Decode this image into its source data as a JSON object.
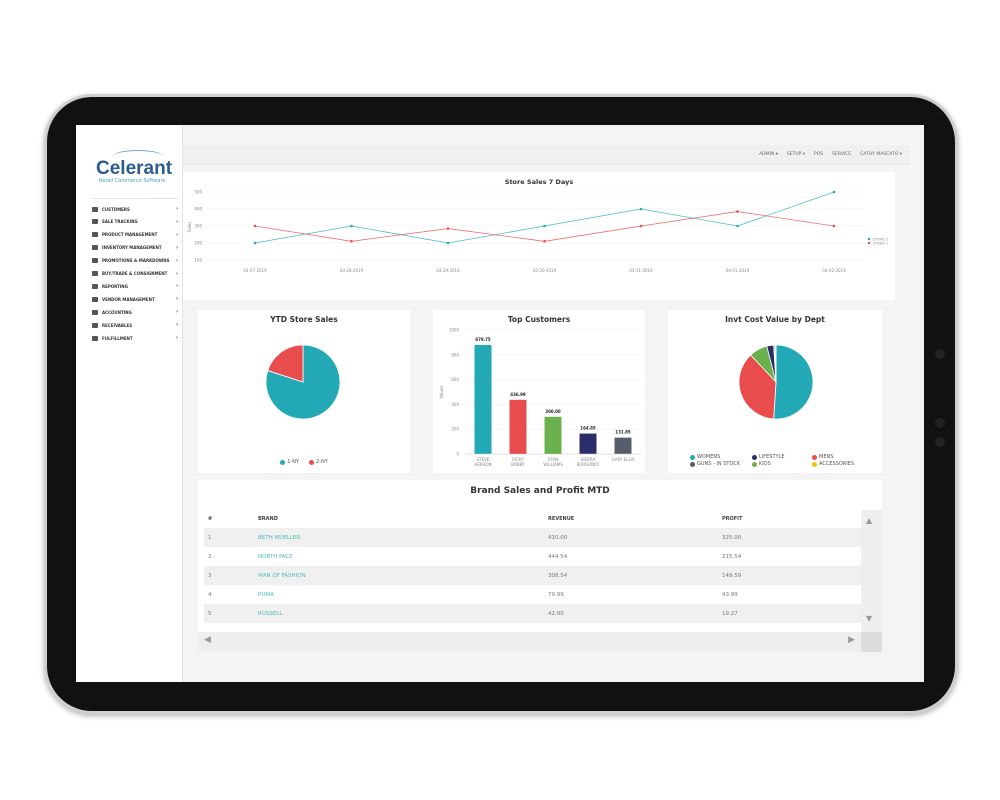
{
  "brand": {
    "name": "Celerant",
    "tagline": "Retail Commerce Software"
  },
  "sidebar": {
    "items": [
      {
        "label": "CUSTOMERS"
      },
      {
        "label": "SALE TRACKING"
      },
      {
        "label": "PRODUCT MANAGEMENT"
      },
      {
        "label": "INVENTORY MANAGEMENT"
      },
      {
        "label": "PROMOTIONS & MARKDOWNS"
      },
      {
        "label": "BUY/TRADE & CONSIGNMENT"
      },
      {
        "label": "REPORTING"
      },
      {
        "label": "VENDOR MANAGEMENT"
      },
      {
        "label": "ACCOUNTING"
      },
      {
        "label": "RECEIVABLES"
      },
      {
        "label": "FULFILLMENT"
      }
    ]
  },
  "topbar": {
    "admin": "ADMIN ▾",
    "setup": "SETUP ▾",
    "pos": "POS",
    "service": "SERVICE",
    "user": "CATHY MASCATO ▾"
  },
  "colors": {
    "teal": "#22a9b5",
    "red": "#e84c4c",
    "green": "#6ab04c",
    "navy": "#2b2d6b",
    "gray": "#555d6b",
    "yellow": "#f1c40f"
  },
  "chart_data": [
    {
      "type": "line",
      "title": "Store Sales 7 Days",
      "ylabel": "Sales",
      "ylim": [
        100,
        500
      ],
      "yticks": [
        "500",
        "400",
        "300",
        "200",
        "100"
      ],
      "x": [
        "03-27-2019",
        "03-28-2019",
        "03-29-2019",
        "03-30-2019",
        "03-31-2019",
        "04-01-2019",
        "04-02-2019"
      ],
      "series": [
        {
          "name": "STORE 2",
          "color": "#22a9b5",
          "values": [
            200,
            300,
            200,
            300,
            400,
            300,
            500
          ]
        },
        {
          "name": "STORE 1",
          "color": "#e84c4c",
          "values": [
            300,
            210,
            285,
            210,
            300,
            385,
            300
          ]
        }
      ],
      "legend": "right"
    },
    {
      "type": "pie",
      "title": "YTD Store Sales",
      "slices": [
        {
          "name": "1-NY",
          "value": 80,
          "color": "#22a9b5"
        },
        {
          "name": "2-NY",
          "value": 20,
          "color": "#e84c4c"
        }
      ],
      "legend": "bottom"
    },
    {
      "type": "bar",
      "title": "Top Customers",
      "ylabel": "Values",
      "ylim": [
        0,
        1000
      ],
      "yticks": [
        "1000",
        "800",
        "600",
        "400",
        "200",
        "0"
      ],
      "categories": [
        [
          "STEVE",
          "HERRON"
        ],
        [
          "RICKY",
          "BOBBY"
        ],
        [
          "STAN",
          "WILLIAMS"
        ],
        [
          "SIERRA",
          "BURGUNDY"
        ],
        [
          "GARY ELLIS",
          ""
        ]
      ],
      "values": [
        879.75,
        436.99,
        300.0,
        164.85,
        131.85
      ],
      "labels": [
        "879.75",
        "436.99",
        "300.00",
        "164.85",
        "131.85"
      ],
      "colors": [
        "#22a9b5",
        "#e84c4c",
        "#6ab04c",
        "#2b2d6b",
        "#555d6b"
      ]
    },
    {
      "type": "pie",
      "title": "Invt Cost Value by Dept",
      "slices": [
        {
          "name": "WOMENS",
          "value": 51,
          "color": "#22a9b5"
        },
        {
          "name": "MENS",
          "value": 37,
          "color": "#e84c4c"
        },
        {
          "name": "KIDS",
          "value": 8,
          "color": "#6ab04c"
        },
        {
          "name": "LIFESTYLE",
          "value": 3,
          "color": "#2b2d6b"
        },
        {
          "name": "GUNS - IN STOCK",
          "value": 0.5,
          "color": "#555d6b"
        },
        {
          "name": "ACCESSORIES",
          "value": 0.5,
          "color": "#f1c40f"
        }
      ],
      "legend": "bottom"
    }
  ],
  "table": {
    "title": "Brand Sales and Profit MTD",
    "headers": [
      "#",
      "BRAND",
      "REVENUE",
      "PROFIT"
    ],
    "rows": [
      [
        "1",
        "BETH MUELLER",
        "410.00",
        "325.00"
      ],
      [
        "2",
        "NORTH FACE",
        "444.54",
        "215.54"
      ],
      [
        "3",
        "MAN OF FASHION",
        "308.54",
        "149.59"
      ],
      [
        "4",
        "PUMA",
        "79.99",
        "43.99"
      ],
      [
        "5",
        "RUSSELL",
        "42.00",
        "19.27"
      ]
    ]
  }
}
